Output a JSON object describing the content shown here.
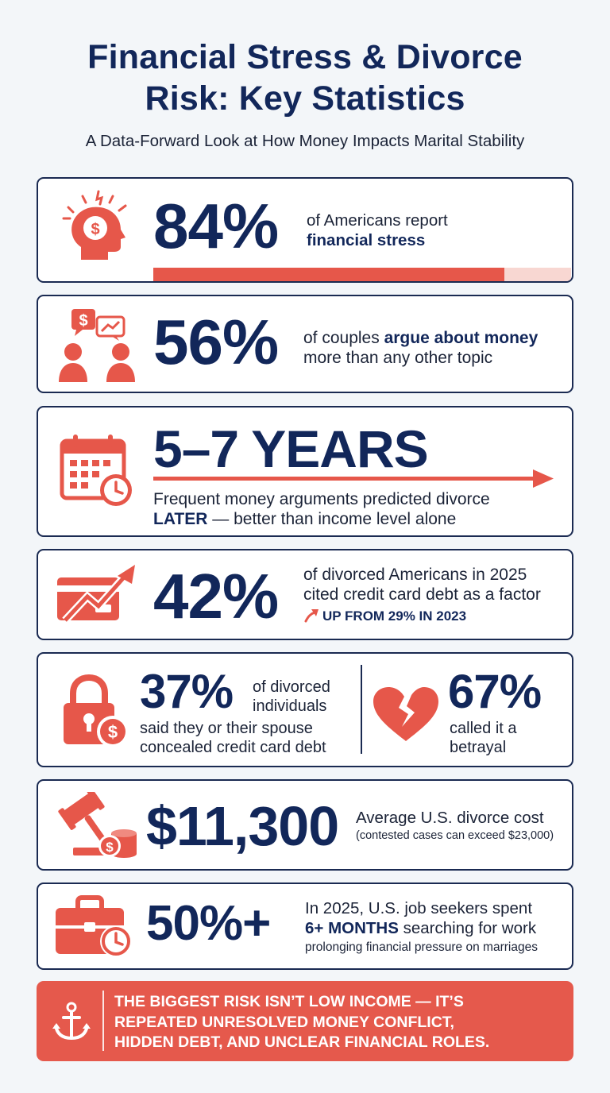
{
  "header": {
    "title_line1": "Financial Stress & Divorce",
    "title_line2": "Risk: Key Statistics",
    "subtitle": "A Data-Forward Look at How Money Impacts Marital Stability"
  },
  "colors": {
    "accent": "#e6574a",
    "navy": "#12275a",
    "accent_light": "#f8d7d2"
  },
  "stats": {
    "financial_stress": {
      "icon": "stressed-head-dollar-icon",
      "value": "84%",
      "text_line1": "of Americans report",
      "text_bold": "financial stress",
      "progress_percent": 84
    },
    "money_arguments": {
      "icon": "arguing-couple-icon",
      "value": "56%",
      "text_pre": "of couples ",
      "text_bold": "argue about money",
      "text_line2": "more than any other topic"
    },
    "years_prediction": {
      "icon": "calendar-clock-icon",
      "value": "5–7 YEARS",
      "text_line1": "Frequent money arguments predicted divorce",
      "text_bold": "LATER",
      "text_rest": " — better than income level alone"
    },
    "credit_card_debt": {
      "icon": "credit-card-trend-icon",
      "value": "42%",
      "text_line1": "of divorced Americans in 2025",
      "text_line2": "cited credit card debt as a factor",
      "trend_text": "UP FROM 29% IN 2023"
    },
    "concealed_debt": {
      "icon": "lock-dollar-icon",
      "value": "37%",
      "text_line1": "of divorced",
      "text_line2": "individuals",
      "text_line3": "said they or their spouse",
      "text_line4": "concealed credit card debt"
    },
    "betrayal": {
      "icon": "broken-heart-icon",
      "value": "67%",
      "text_line1": "called it a",
      "text_line2": "betrayal"
    },
    "divorce_cost": {
      "icon": "gavel-coins-icon",
      "value": "$11,300",
      "text_line1": "Average U.S. divorce cost",
      "text_line2": "(contested cases can exceed $23,000)"
    },
    "job_search": {
      "icon": "briefcase-clock-icon",
      "value": "50%+",
      "text_line1": "In 2025, U.S. job seekers spent",
      "text_bold": "6+ MONTHS",
      "text_rest": " searching for work",
      "text_line3": "prolonging financial pressure on marriages"
    }
  },
  "banner": {
    "icon": "anchor-icon",
    "line1": "THE BIGGEST RISK ISN’T LOW INCOME — IT’S",
    "line2": "REPEATED UNRESOLVED MONEY CONFLICT,",
    "line3": "HIDDEN DEBT, AND UNCLEAR FINANCIAL ROLES."
  }
}
